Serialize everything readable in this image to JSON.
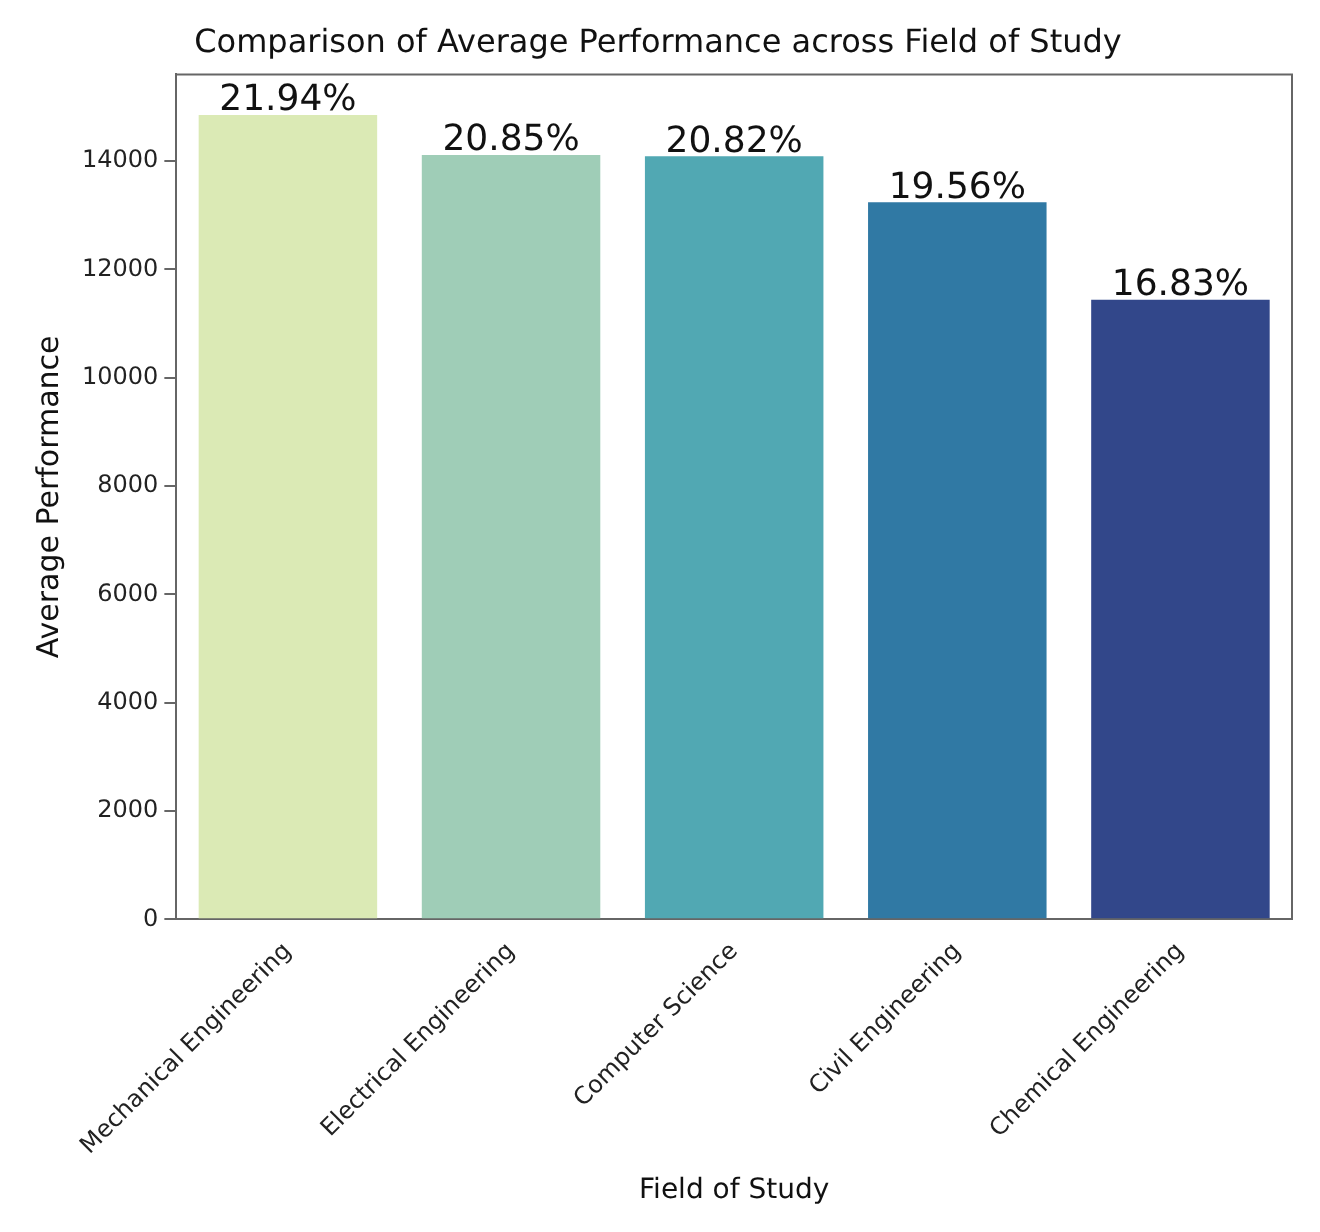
{
  "chart_data": {
    "type": "bar",
    "title": "Comparison of Average Performance across Field of Study",
    "xlabel": "Field of Study",
    "ylabel": "Average Performance",
    "categories": [
      "Mechanical Engineering",
      "Electrical Engineering",
      "Computer Science",
      "Civil Engineering",
      "Chemical Engineering"
    ],
    "values": [
      14850,
      14110,
      14090,
      13240,
      11440
    ],
    "colors": [
      "#dbeab5",
      "#9fcdb7",
      "#51a8b3",
      "#3079a4",
      "#32478a"
    ],
    "annotations": [
      {
        "text": "21.94%",
        "x": "Mechanical Engineering",
        "y": 14850
      },
      {
        "text": "20.85%",
        "x": "Electrical Engineering",
        "y": 14110
      },
      {
        "text": "20.82%",
        "x": "Computer Science",
        "y": 14090
      },
      {
        "text": "19.56%",
        "x": "Civil Engineering",
        "y": 13240
      },
      {
        "text": "16.83%",
        "x": "Chemical Engineering",
        "y": 11440
      }
    ],
    "ylim": [
      0,
      15600
    ],
    "yticks": [
      0,
      2000,
      4000,
      6000,
      8000,
      10000,
      12000,
      14000
    ],
    "grid": false,
    "legend": false
  }
}
